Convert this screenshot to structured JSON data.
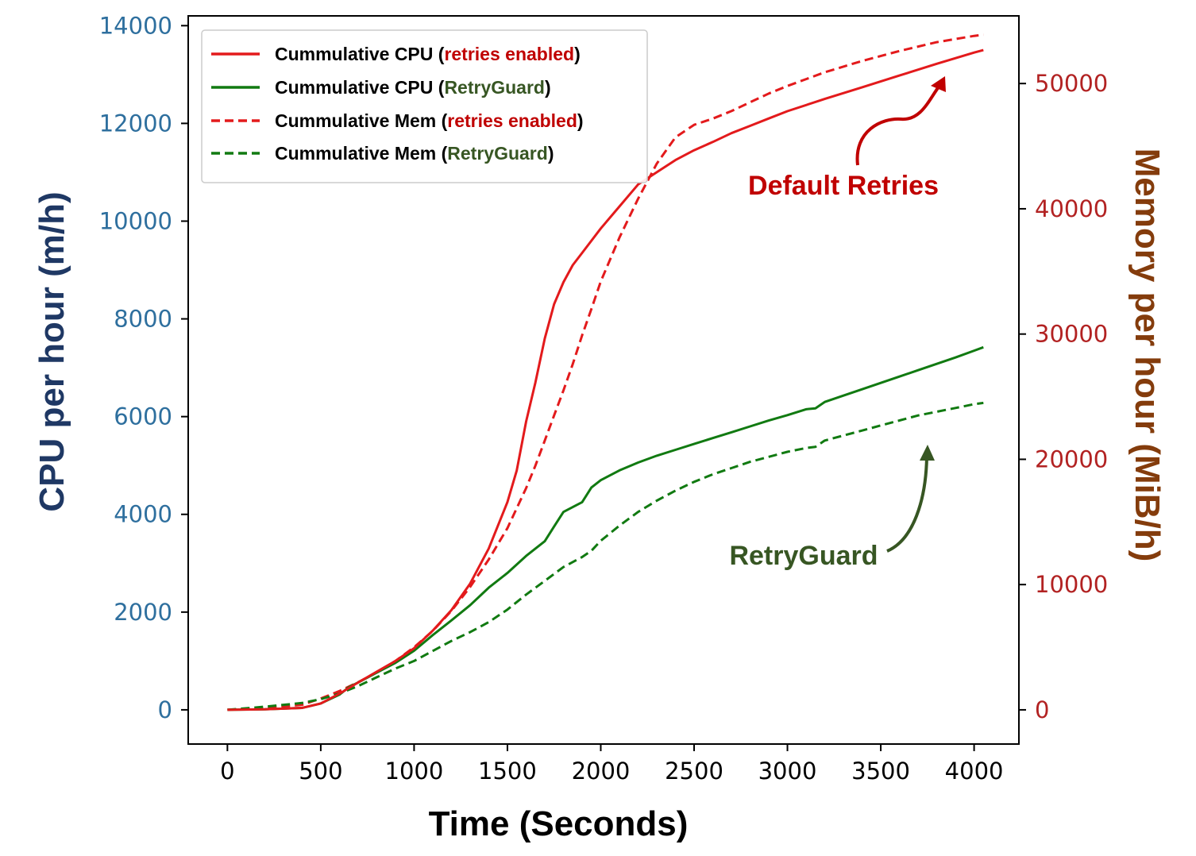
{
  "colors": {
    "red": "#e31a1c",
    "green": "#117a11",
    "left_axis_title": "#1f3864",
    "left_ticks": "#2e6f9e",
    "right_axis_title": "#843c0c",
    "right_ticks": "#b22222",
    "legend_red_text": "#c00000",
    "legend_green_text": "#375623",
    "annot_red": "#c00000",
    "annot_green": "#375623"
  },
  "chart_data": {
    "type": "line",
    "xlabel": "Time (Seconds)",
    "ylabel_left": "CPU per hour (m/h)",
    "ylabel_right": "Memory per hour (MiB/h)",
    "xlim": [
      -210,
      4240
    ],
    "ylim_left": [
      -700,
      14200
    ],
    "ylim_right": [
      -2730,
      55400
    ],
    "x_ticks": [
      0,
      500,
      1000,
      1500,
      2000,
      2500,
      3000,
      3500,
      4000
    ],
    "x_tick_labels": [
      "0",
      "500",
      "1000",
      "1500",
      "2000",
      "2500",
      "3000",
      "3500",
      "4000"
    ],
    "left_ticks": [
      0,
      2000,
      4000,
      6000,
      8000,
      10000,
      12000,
      14000
    ],
    "left_tick_labels": [
      "0",
      "2000",
      "4000",
      "6000",
      "8000",
      "10000",
      "12000",
      "14000"
    ],
    "right_ticks": [
      0,
      10000,
      20000,
      30000,
      40000,
      50000
    ],
    "right_tick_labels": [
      "0",
      "10000",
      "20000",
      "30000",
      "40000",
      "50000"
    ],
    "legend_placement": "top-left",
    "series": [
      {
        "name": "Cummulative CPU (retries enabled)",
        "legend_prefix": "Cummulative CPU (",
        "legend_highlight": "retries enabled",
        "legend_suffix": ")",
        "axis": "left",
        "color": "red",
        "dash": "solid",
        "x": [
          0,
          200,
          400,
          500,
          600,
          700,
          800,
          900,
          1000,
          1100,
          1200,
          1300,
          1400,
          1500,
          1550,
          1600,
          1650,
          1700,
          1750,
          1800,
          1850,
          1900,
          2000,
          2100,
          2200,
          2300,
          2400,
          2500,
          2600,
          2700,
          2800,
          2900,
          3000,
          3200,
          3400,
          3600,
          3800,
          4000,
          4050
        ],
        "y": [
          0,
          10,
          40,
          130,
          330,
          560,
          780,
          1000,
          1260,
          1620,
          2040,
          2580,
          3300,
          4250,
          4900,
          5900,
          6700,
          7600,
          8300,
          8750,
          9100,
          9350,
          9850,
          10300,
          10750,
          11000,
          11250,
          11450,
          11620,
          11800,
          11950,
          12100,
          12250,
          12500,
          12740,
          12980,
          13220,
          13450,
          13500
        ]
      },
      {
        "name": "Cummulative CPU (RetryGuard)",
        "legend_prefix": "Cummulative CPU (",
        "legend_highlight": "RetryGuard",
        "legend_suffix": ")",
        "axis": "left",
        "color": "green",
        "dash": "solid",
        "x": [
          0,
          200,
          400,
          500,
          600,
          650,
          700,
          800,
          900,
          1000,
          1100,
          1200,
          1300,
          1400,
          1500,
          1600,
          1700,
          1750,
          1800,
          1900,
          1950,
          2000,
          2100,
          2200,
          2300,
          2400,
          2500,
          2600,
          2700,
          2800,
          2900,
          3000,
          3100,
          3150,
          3200,
          3300,
          3400,
          3500,
          3600,
          3700,
          3800,
          3900,
          4000,
          4050
        ],
        "y": [
          0,
          10,
          40,
          130,
          310,
          460,
          560,
          760,
          960,
          1210,
          1530,
          1830,
          2140,
          2500,
          2800,
          3150,
          3450,
          3750,
          4050,
          4250,
          4550,
          4700,
          4900,
          5060,
          5200,
          5320,
          5440,
          5560,
          5680,
          5800,
          5920,
          6030,
          6150,
          6170,
          6300,
          6430,
          6560,
          6690,
          6820,
          6950,
          7080,
          7210,
          7350,
          7420
        ]
      },
      {
        "name": "Cummulative Mem (retries enabled)",
        "legend_prefix": "Cummulative Mem (",
        "legend_highlight": "retries enabled",
        "legend_suffix": ")",
        "axis": "right",
        "color": "red",
        "dash": "dashed",
        "x": [
          0,
          200,
          400,
          500,
          600,
          700,
          800,
          900,
          1000,
          1100,
          1200,
          1300,
          1400,
          1500,
          1600,
          1650,
          1700,
          1750,
          1800,
          1850,
          1900,
          1950,
          2000,
          2100,
          2200,
          2300,
          2400,
          2500,
          2600,
          2700,
          2800,
          2900,
          3000,
          3200,
          3400,
          3600,
          3800,
          4000,
          4050
        ],
        "y": [
          0,
          150,
          400,
          900,
          1500,
          2200,
          3000,
          3900,
          5000,
          6300,
          7900,
          9800,
          12000,
          14500,
          17700,
          19500,
          21500,
          23500,
          25500,
          27600,
          29900,
          32000,
          34200,
          37700,
          40800,
          43600,
          45700,
          46700,
          47200,
          47800,
          48500,
          49200,
          49800,
          50900,
          51800,
          52600,
          53300,
          53800,
          53900
        ]
      },
      {
        "name": "Cummulative Mem (RetryGuard)",
        "legend_prefix": "Cummulative Mem (",
        "legend_highlight": "RetryGuard",
        "legend_suffix": ")",
        "axis": "right",
        "color": "green",
        "dash": "dashed",
        "x": [
          0,
          200,
          400,
          500,
          600,
          700,
          800,
          900,
          1000,
          1100,
          1200,
          1300,
          1400,
          1500,
          1600,
          1700,
          1800,
          1900,
          1950,
          2000,
          2100,
          2200,
          2300,
          2400,
          2500,
          2600,
          2700,
          2800,
          2900,
          3000,
          3100,
          3150,
          3200,
          3300,
          3400,
          3500,
          3600,
          3700,
          3800,
          3900,
          4000,
          4050
        ],
        "y": [
          0,
          250,
          550,
          850,
          1300,
          1900,
          2600,
          3300,
          3900,
          4700,
          5500,
          6200,
          7000,
          8000,
          9200,
          10300,
          11400,
          12200,
          12700,
          13500,
          14700,
          15800,
          16700,
          17500,
          18200,
          18800,
          19300,
          19800,
          20200,
          20600,
          20900,
          21000,
          21500,
          21900,
          22300,
          22700,
          23100,
          23500,
          23800,
          24100,
          24400,
          24500
        ]
      }
    ],
    "annotations": [
      {
        "text": "Default Retries",
        "color": "red"
      },
      {
        "text": "RetryGuard",
        "color": "green"
      }
    ]
  }
}
